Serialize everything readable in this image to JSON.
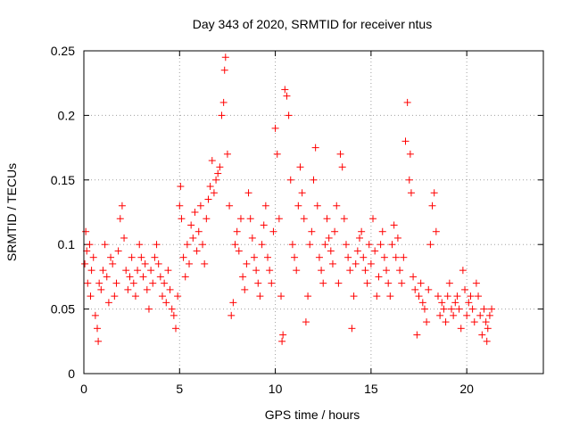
{
  "chart_data": {
    "type": "scatter",
    "title": "Day 343 of 2020, SRMTID for receiver ntus",
    "xlabel": "GPS time / hours",
    "ylabel": "SRMTID / TECUs",
    "xlim": [
      0,
      24
    ],
    "ylim": [
      0,
      0.25
    ],
    "xticks": [
      0,
      5,
      10,
      15,
      20
    ],
    "xtick_labels": [
      "0",
      "5",
      "10",
      "15",
      "20"
    ],
    "yticks": [
      0,
      0.05,
      0.1,
      0.15,
      0.2,
      0.25
    ],
    "ytick_labels": [
      "0",
      "0.05",
      "0.1",
      "0.15",
      "0.2",
      "0.25"
    ],
    "grid": true,
    "marker": "+",
    "series": [
      {
        "name": "SRMTID",
        "color": "#ff0000",
        "points": [
          [
            0.05,
            0.085
          ],
          [
            0.1,
            0.11
          ],
          [
            0.15,
            0.095
          ],
          [
            0.2,
            0.07
          ],
          [
            0.3,
            0.1
          ],
          [
            0.35,
            0.06
          ],
          [
            0.4,
            0.08
          ],
          [
            0.5,
            0.09
          ],
          [
            0.6,
            0.045
          ],
          [
            0.7,
            0.035
          ],
          [
            0.75,
            0.025
          ],
          [
            0.8,
            0.07
          ],
          [
            0.9,
            0.065
          ],
          [
            1.0,
            0.08
          ],
          [
            1.1,
            0.1
          ],
          [
            1.2,
            0.075
          ],
          [
            1.3,
            0.055
          ],
          [
            1.4,
            0.09
          ],
          [
            1.5,
            0.085
          ],
          [
            1.6,
            0.06
          ],
          [
            1.7,
            0.07
          ],
          [
            1.8,
            0.095
          ],
          [
            1.9,
            0.12
          ],
          [
            2.0,
            0.13
          ],
          [
            2.1,
            0.105
          ],
          [
            2.2,
            0.08
          ],
          [
            2.3,
            0.065
          ],
          [
            2.4,
            0.075
          ],
          [
            2.5,
            0.09
          ],
          [
            2.6,
            0.07
          ],
          [
            2.7,
            0.06
          ],
          [
            2.8,
            0.08
          ],
          [
            2.9,
            0.1
          ],
          [
            3.0,
            0.09
          ],
          [
            3.1,
            0.075
          ],
          [
            3.2,
            0.085
          ],
          [
            3.3,
            0.065
          ],
          [
            3.4,
            0.05
          ],
          [
            3.5,
            0.08
          ],
          [
            3.6,
            0.07
          ],
          [
            3.7,
            0.09
          ],
          [
            3.8,
            0.1
          ],
          [
            3.9,
            0.085
          ],
          [
            4.0,
            0.075
          ],
          [
            4.1,
            0.06
          ],
          [
            4.2,
            0.07
          ],
          [
            4.3,
            0.055
          ],
          [
            4.4,
            0.08
          ],
          [
            4.5,
            0.065
          ],
          [
            4.6,
            0.05
          ],
          [
            4.7,
            0.045
          ],
          [
            4.8,
            0.035
          ],
          [
            4.9,
            0.06
          ],
          [
            5.0,
            0.13
          ],
          [
            5.05,
            0.145
          ],
          [
            5.1,
            0.12
          ],
          [
            5.2,
            0.09
          ],
          [
            5.3,
            0.075
          ],
          [
            5.4,
            0.1
          ],
          [
            5.5,
            0.085
          ],
          [
            5.6,
            0.115
          ],
          [
            5.7,
            0.105
          ],
          [
            5.8,
            0.125
          ],
          [
            5.9,
            0.095
          ],
          [
            6.0,
            0.11
          ],
          [
            6.1,
            0.13
          ],
          [
            6.2,
            0.1
          ],
          [
            6.3,
            0.085
          ],
          [
            6.4,
            0.12
          ],
          [
            6.5,
            0.135
          ],
          [
            6.6,
            0.145
          ],
          [
            6.7,
            0.165
          ],
          [
            6.8,
            0.14
          ],
          [
            6.9,
            0.15
          ],
          [
            7.0,
            0.155
          ],
          [
            7.1,
            0.16
          ],
          [
            7.2,
            0.2
          ],
          [
            7.3,
            0.21
          ],
          [
            7.35,
            0.235
          ],
          [
            7.4,
            0.245
          ],
          [
            7.5,
            0.17
          ],
          [
            7.6,
            0.13
          ],
          [
            7.7,
            0.045
          ],
          [
            7.8,
            0.055
          ],
          [
            7.9,
            0.1
          ],
          [
            8.0,
            0.11
          ],
          [
            8.1,
            0.095
          ],
          [
            8.2,
            0.12
          ],
          [
            8.3,
            0.075
          ],
          [
            8.4,
            0.065
          ],
          [
            8.5,
            0.085
          ],
          [
            8.6,
            0.14
          ],
          [
            8.7,
            0.12
          ],
          [
            8.8,
            0.105
          ],
          [
            8.9,
            0.09
          ],
          [
            9.0,
            0.08
          ],
          [
            9.1,
            0.07
          ],
          [
            9.2,
            0.06
          ],
          [
            9.3,
            0.1
          ],
          [
            9.4,
            0.115
          ],
          [
            9.5,
            0.13
          ],
          [
            9.6,
            0.09
          ],
          [
            9.7,
            0.08
          ],
          [
            9.8,
            0.07
          ],
          [
            9.9,
            0.11
          ],
          [
            10.0,
            0.19
          ],
          [
            10.1,
            0.17
          ],
          [
            10.2,
            0.12
          ],
          [
            10.3,
            0.06
          ],
          [
            10.35,
            0.025
          ],
          [
            10.4,
            0.03
          ],
          [
            10.5,
            0.22
          ],
          [
            10.6,
            0.215
          ],
          [
            10.7,
            0.2
          ],
          [
            10.8,
            0.15
          ],
          [
            10.9,
            0.1
          ],
          [
            11.0,
            0.09
          ],
          [
            11.1,
            0.08
          ],
          [
            11.2,
            0.13
          ],
          [
            11.3,
            0.16
          ],
          [
            11.4,
            0.14
          ],
          [
            11.5,
            0.12
          ],
          [
            11.6,
            0.04
          ],
          [
            11.7,
            0.06
          ],
          [
            11.8,
            0.1
          ],
          [
            11.9,
            0.11
          ],
          [
            12.0,
            0.15
          ],
          [
            12.1,
            0.175
          ],
          [
            12.2,
            0.13
          ],
          [
            12.3,
            0.09
          ],
          [
            12.4,
            0.08
          ],
          [
            12.5,
            0.07
          ],
          [
            12.6,
            0.1
          ],
          [
            12.7,
            0.12
          ],
          [
            12.8,
            0.105
          ],
          [
            12.9,
            0.095
          ],
          [
            13.0,
            0.085
          ],
          [
            13.1,
            0.11
          ],
          [
            13.2,
            0.13
          ],
          [
            13.3,
            0.07
          ],
          [
            13.4,
            0.17
          ],
          [
            13.5,
            0.16
          ],
          [
            13.6,
            0.12
          ],
          [
            13.7,
            0.1
          ],
          [
            13.8,
            0.09
          ],
          [
            13.9,
            0.08
          ],
          [
            14.0,
            0.035
          ],
          [
            14.1,
            0.06
          ],
          [
            14.2,
            0.085
          ],
          [
            14.3,
            0.095
          ],
          [
            14.4,
            0.105
          ],
          [
            14.5,
            0.11
          ],
          [
            14.6,
            0.09
          ],
          [
            14.7,
            0.08
          ],
          [
            14.8,
            0.07
          ],
          [
            14.9,
            0.1
          ],
          [
            15.0,
            0.085
          ],
          [
            15.1,
            0.12
          ],
          [
            15.2,
            0.095
          ],
          [
            15.3,
            0.06
          ],
          [
            15.4,
            0.075
          ],
          [
            15.5,
            0.1
          ],
          [
            15.6,
            0.11
          ],
          [
            15.7,
            0.09
          ],
          [
            15.8,
            0.08
          ],
          [
            15.9,
            0.07
          ],
          [
            16.0,
            0.06
          ],
          [
            16.1,
            0.1
          ],
          [
            16.2,
            0.115
          ],
          [
            16.3,
            0.09
          ],
          [
            16.4,
            0.105
          ],
          [
            16.5,
            0.08
          ],
          [
            16.6,
            0.07
          ],
          [
            16.7,
            0.09
          ],
          [
            16.8,
            0.18
          ],
          [
            16.9,
            0.21
          ],
          [
            17.0,
            0.15
          ],
          [
            17.05,
            0.17
          ],
          [
            17.1,
            0.14
          ],
          [
            17.2,
            0.075
          ],
          [
            17.3,
            0.065
          ],
          [
            17.4,
            0.03
          ],
          [
            17.5,
            0.06
          ],
          [
            17.6,
            0.07
          ],
          [
            17.7,
            0.055
          ],
          [
            17.8,
            0.05
          ],
          [
            17.9,
            0.04
          ],
          [
            18.0,
            0.065
          ],
          [
            18.1,
            0.1
          ],
          [
            18.2,
            0.13
          ],
          [
            18.3,
            0.14
          ],
          [
            18.4,
            0.11
          ],
          [
            18.5,
            0.06
          ],
          [
            18.6,
            0.045
          ],
          [
            18.7,
            0.055
          ],
          [
            18.8,
            0.05
          ],
          [
            18.9,
            0.04
          ],
          [
            19.0,
            0.06
          ],
          [
            19.1,
            0.07
          ],
          [
            19.2,
            0.05
          ],
          [
            19.3,
            0.045
          ],
          [
            19.4,
            0.055
          ],
          [
            19.5,
            0.06
          ],
          [
            19.6,
            0.05
          ],
          [
            19.7,
            0.035
          ],
          [
            19.8,
            0.08
          ],
          [
            19.9,
            0.065
          ],
          [
            20.0,
            0.045
          ],
          [
            20.1,
            0.055
          ],
          [
            20.2,
            0.06
          ],
          [
            20.3,
            0.05
          ],
          [
            20.4,
            0.04
          ],
          [
            20.5,
            0.07
          ],
          [
            20.6,
            0.06
          ],
          [
            20.7,
            0.045
          ],
          [
            20.8,
            0.03
          ],
          [
            20.9,
            0.05
          ],
          [
            21.0,
            0.04
          ],
          [
            21.05,
            0.025
          ],
          [
            21.1,
            0.035
          ],
          [
            21.2,
            0.045
          ],
          [
            21.3,
            0.05
          ]
        ]
      }
    ]
  }
}
